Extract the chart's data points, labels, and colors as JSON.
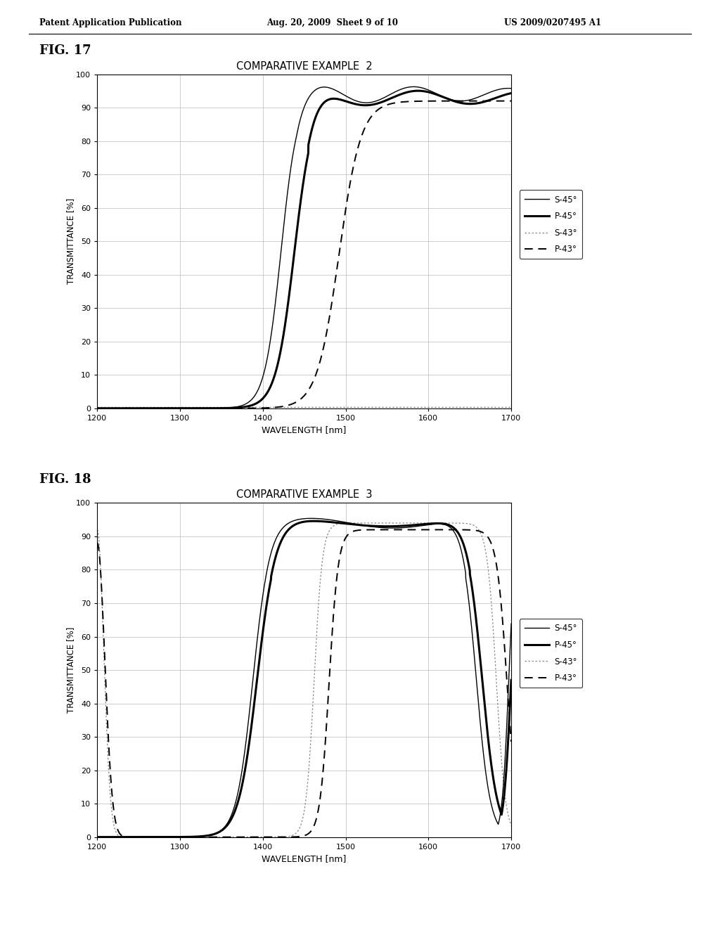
{
  "header_left": "Patent Application Publication",
  "header_mid": "Aug. 20, 2009  Sheet 9 of 10",
  "header_right": "US 2009/0207495 A1",
  "fig17_label": "FIG. 17",
  "fig18_label": "FIG. 18",
  "fig17_title": "COMPARATIVE EXAMPLE  2",
  "fig18_title": "COMPARATIVE EXAMPLE  3",
  "xlabel": "WAVELENGTH [nm]",
  "ylabel": "TRANSMITTANCE [%]",
  "xmin": 1200,
  "xmax": 1700,
  "ymin": 0,
  "ymax": 100,
  "xticks": [
    1200,
    1300,
    1400,
    1500,
    1600,
    1700
  ],
  "yticks": [
    0,
    10,
    20,
    30,
    40,
    50,
    60,
    70,
    80,
    90,
    100
  ],
  "background_color": "#ffffff"
}
